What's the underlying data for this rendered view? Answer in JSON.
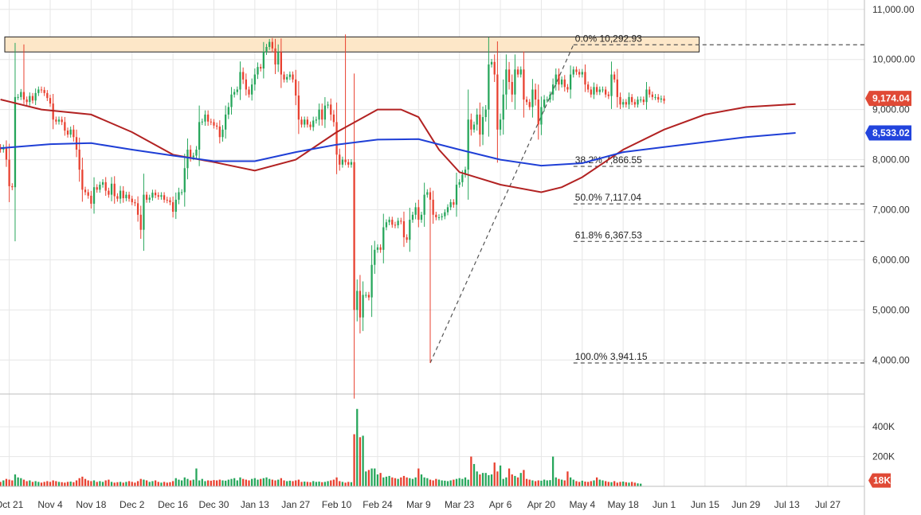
{
  "chart_data": {
    "type": "candlestick",
    "y_axis": {
      "min": 3500,
      "max": 11000,
      "ticks": [
        "11,000.00",
        "10,000.00",
        "9,000.00",
        "8,000.00",
        "7,000.00",
        "6,000.00",
        "5,000.00",
        "4,000.00"
      ],
      "tick_values": [
        11000,
        10000,
        9000,
        8000,
        7000,
        6000,
        5000,
        4000
      ],
      "side": "right"
    },
    "volume_axis": {
      "min": 0,
      "max": 540000,
      "ticks": [
        "400K",
        "200K"
      ],
      "tick_values": [
        400000,
        200000
      ]
    },
    "x_axis": {
      "start": "2019-10-21",
      "end": "2020-08-03",
      "labels": [
        "Oct 21",
        "Nov 4",
        "Nov 18",
        "Dec 2",
        "Dec 16",
        "Dec 30",
        "Jan 13",
        "Jan 27",
        "Feb 10",
        "Feb 24",
        "Mar 9",
        "Mar 23",
        "Apr 6",
        "Apr 20",
        "May 4",
        "May 18",
        "Jun 1",
        "Jun 15",
        "Jun 29",
        "Jul 13",
        "Jul 27"
      ],
      "label_dates": [
        "2019-10-21",
        "2019-11-04",
        "2019-11-18",
        "2019-12-02",
        "2019-12-16",
        "2019-12-30",
        "2020-01-13",
        "2020-01-27",
        "2020-02-10",
        "2020-02-24",
        "2020-03-09",
        "2020-03-23",
        "2020-04-06",
        "2020-04-20",
        "2020-05-04",
        "2020-05-18",
        "2020-06-01",
        "2020-06-15",
        "2020-06-29",
        "2020-07-13",
        "2020-07-27"
      ]
    },
    "grid": true,
    "colors": {
      "up": "#26a65b",
      "down": "#e8402f",
      "ma_short": "#b22222",
      "ma_long": "#1f3fd6",
      "zone_fill": "#fde7c8",
      "zone_border": "#222222"
    },
    "candles": {
      "first_date": "2019-10-18",
      "close": [
        8200,
        8240,
        8000,
        7470,
        7450,
        9250,
        9250,
        9350,
        9200,
        9150,
        9270,
        9180,
        9330,
        9400,
        9390,
        9330,
        9230,
        9120,
        8800,
        8760,
        8800,
        8750,
        8580,
        8500,
        8600,
        8450,
        8200,
        7800,
        7400,
        7350,
        7280,
        7120,
        7450,
        7400,
        7500,
        7550,
        7380,
        7300,
        7520,
        7270,
        7220,
        7380,
        7230,
        7300,
        7220,
        7150,
        7130,
        6900,
        6600,
        7300,
        7200,
        7240,
        7340,
        7290,
        7260,
        7290,
        7200,
        7190,
        7150,
        6960,
        7200,
        7350,
        7350,
        7830,
        8200,
        8050,
        8080,
        8200,
        8750,
        8760,
        8900,
        8760,
        8750,
        8680,
        8660,
        8450,
        8600,
        8900,
        9050,
        9300,
        9350,
        9400,
        9750,
        9600,
        9400,
        9300,
        9500,
        9700,
        9850,
        9820,
        10150,
        10250,
        10350,
        10220,
        9900,
        10150,
        9700,
        9600,
        9650,
        9700,
        9600,
        9280,
        8800,
        8700,
        8800,
        8700,
        8650,
        8780,
        8800,
        9000,
        8800,
        9080,
        9100,
        8900,
        8750,
        8100,
        7900,
        8000,
        7950,
        7900,
        7950,
        5000,
        5380,
        4850,
        5300,
        5300,
        5250,
        5900,
        6200,
        6250,
        6200,
        6650,
        6750,
        6800,
        6700,
        6690,
        6780,
        6770,
        6450,
        6400,
        6800,
        6900,
        7050,
        6800,
        6900,
        7300,
        7350,
        7200,
        6900,
        6850,
        6850,
        6870,
        6950,
        7050,
        7150,
        7100,
        7500,
        7550,
        7700,
        7800,
        8800,
        8600,
        8700,
        8900,
        8500,
        8850,
        9000,
        9900,
        9950,
        9700,
        8600,
        8800,
        9300,
        9800,
        9550,
        9300,
        9800,
        9700,
        9800,
        9200,
        9150,
        9050,
        9400,
        9200,
        8700,
        9050,
        9200,
        9200,
        9300,
        9500,
        9700,
        9500,
        9600,
        9450,
        9400,
        9700,
        9800,
        9750,
        9700,
        9750,
        9500,
        9400,
        9300,
        9450,
        9350,
        9400,
        9400,
        9300,
        9270,
        9700,
        9600,
        9250,
        9100,
        9150,
        9100,
        9250,
        9150,
        9100,
        9200,
        9200,
        9150,
        9400,
        9300,
        9250,
        9250,
        9200,
        9220,
        9174
      ],
      "open": [
        8250,
        8200,
        8240,
        8000,
        7470,
        7450,
        9250,
        9250,
        9350,
        9200,
        9150,
        9270,
        9180,
        9330,
        9400,
        9390,
        9330,
        9230,
        9120,
        8800,
        8760,
        8800,
        8750,
        8580,
        8500,
        8600,
        8450,
        8200,
        7800,
        7400,
        7350,
        7280,
        7120,
        7450,
        7400,
        7500,
        7550,
        7380,
        7300,
        7520,
        7270,
        7220,
        7380,
        7230,
        7300,
        7220,
        7150,
        7130,
        6900,
        6600,
        7300,
        7200,
        7240,
        7340,
        7290,
        7260,
        7290,
        7200,
        7190,
        7150,
        6960,
        7200,
        7350,
        7350,
        7830,
        8200,
        8050,
        8080,
        8200,
        8750,
        8760,
        8900,
        8760,
        8750,
        8680,
        8660,
        8450,
        8600,
        8900,
        9050,
        9300,
        9350,
        9400,
        9750,
        9600,
        9400,
        9300,
        9500,
        9700,
        9850,
        9820,
        10150,
        10250,
        10350,
        10220,
        9900,
        10150,
        9700,
        9600,
        9650,
        9700,
        9600,
        9280,
        8800,
        8700,
        8800,
        8700,
        8650,
        8780,
        8800,
        9000,
        8800,
        9080,
        9100,
        8900,
        8750,
        8100,
        7900,
        8000,
        7950,
        7900,
        7950,
        5000,
        5380,
        4850,
        5300,
        5300,
        5250,
        5900,
        6200,
        6250,
        6200,
        6650,
        6750,
        6800,
        6700,
        6690,
        6780,
        6770,
        6450,
        6400,
        6800,
        6900,
        7050,
        6800,
        6900,
        7300,
        7350,
        7200,
        6900,
        6850,
        6850,
        6870,
        6950,
        7050,
        7150,
        7100,
        7500,
        7550,
        7700,
        7800,
        8800,
        8600,
        8700,
        8900,
        8500,
        8850,
        9000,
        9900,
        9950,
        9700,
        8600,
        8800,
        9300,
        9800,
        9550,
        9300,
        9800,
        9700,
        9800,
        9200,
        9150,
        9050,
        9400,
        9200,
        8700,
        9050,
        9200,
        9200,
        9300,
        9500,
        9700,
        9500,
        9600,
        9450,
        9400,
        9700,
        9800,
        9750,
        9700,
        9750,
        9500,
        9400,
        9300,
        9450,
        9350,
        9400,
        9400,
        9300,
        9270,
        9700,
        9600,
        9250,
        9100,
        9150,
        9100,
        9250,
        9150,
        9100,
        9200,
        9200,
        9150,
        9400,
        9300,
        9250,
        9250,
        9200,
        9220
      ],
      "note": "daily OHLC estimated from the chart"
    },
    "high_low": [
      {
        "date": "2019-10-26",
        "high": 10300
      },
      {
        "date": "2020-02-13",
        "high": 10500
      },
      {
        "date": "2020-03-13",
        "low": 3941
      },
      {
        "date": "2020-06-02",
        "high": 10300
      }
    ],
    "moving_averages": {
      "short": {
        "color": "#b22222",
        "last_value": 9174.04,
        "points": [
          [
            "2019-10-18",
            9200
          ],
          [
            "2019-11-01",
            9000
          ],
          [
            "2019-11-18",
            8900
          ],
          [
            "2019-12-02",
            8550
          ],
          [
            "2019-12-16",
            8100
          ],
          [
            "2019-12-30",
            7950
          ],
          [
            "2020-01-13",
            7780
          ],
          [
            "2020-01-27",
            8000
          ],
          [
            "2020-02-10",
            8550
          ],
          [
            "2020-02-24",
            9000
          ],
          [
            "2020-03-03",
            9000
          ],
          [
            "2020-03-09",
            8850
          ],
          [
            "2020-03-16",
            8200
          ],
          [
            "2020-03-23",
            7750
          ],
          [
            "2020-04-06",
            7500
          ],
          [
            "2020-04-20",
            7350
          ],
          [
            "2020-04-27",
            7450
          ],
          [
            "2020-05-04",
            7650
          ],
          [
            "2020-05-18",
            8200
          ],
          [
            "2020-06-01",
            8600
          ],
          [
            "2020-06-15",
            8900
          ],
          [
            "2020-06-29",
            9050
          ],
          [
            "2020-07-16",
            9110
          ]
        ]
      },
      "long": {
        "color": "#1f3fd6",
        "last_value": 8533.02,
        "points": [
          [
            "2019-10-18",
            8230
          ],
          [
            "2019-11-04",
            8310
          ],
          [
            "2019-11-18",
            8330
          ],
          [
            "2019-12-02",
            8200
          ],
          [
            "2019-12-16",
            8080
          ],
          [
            "2019-12-30",
            7970
          ],
          [
            "2020-01-13",
            7970
          ],
          [
            "2020-01-27",
            8150
          ],
          [
            "2020-02-10",
            8300
          ],
          [
            "2020-02-24",
            8400
          ],
          [
            "2020-03-09",
            8410
          ],
          [
            "2020-03-23",
            8200
          ],
          [
            "2020-04-06",
            8000
          ],
          [
            "2020-04-20",
            7880
          ],
          [
            "2020-05-04",
            7930
          ],
          [
            "2020-05-18",
            8150
          ],
          [
            "2020-06-01",
            8250
          ],
          [
            "2020-06-15",
            8350
          ],
          [
            "2020-06-29",
            8450
          ],
          [
            "2020-07-16",
            8533
          ]
        ]
      }
    },
    "fibonacci": {
      "levels": [
        {
          "label": "0.0% 10,292.93",
          "value": 10292.93
        },
        {
          "label": "38.2% 7,866.55",
          "value": 7866.55
        },
        {
          "label": "50.0% 7,117.04",
          "value": 7117.04
        },
        {
          "label": "61.8% 6,367.53",
          "value": 6367.53
        },
        {
          "label": "100.0% 3,941.15",
          "value": 3941.15
        }
      ],
      "anchor_start": {
        "date": "2020-03-13",
        "value": 3941.15
      },
      "anchor_end": {
        "date": "2020-05-01",
        "value": 10292.93
      },
      "levels_start_date": "2020-05-01"
    },
    "resistance_zone": {
      "from_date": "2019-10-18",
      "to_date": "2020-06-13",
      "low": 10150,
      "high": 10450
    },
    "volume": {
      "first_date": "2019-10-18",
      "values": [
        30000,
        40000,
        50000,
        45000,
        40000,
        80000,
        60000,
        55000,
        45000,
        35000,
        40000,
        30000,
        35000,
        30000,
        25000,
        30000,
        35000,
        30000,
        40000,
        35000,
        30000,
        28000,
        25000,
        30000,
        32000,
        28000,
        40000,
        55000,
        65000,
        50000,
        40000,
        35000,
        40000,
        30000,
        35000,
        30000,
        40000,
        45000,
        30000,
        25000,
        28000,
        30000,
        25000,
        30000,
        35000,
        30000,
        25000,
        35000,
        50000,
        45000,
        40000,
        30000,
        35000,
        40000,
        30000,
        25000,
        30000,
        25000,
        28000,
        35000,
        55000,
        45000,
        40000,
        60000,
        50000,
        40000,
        45000,
        120000,
        40000,
        50000,
        35000,
        40000,
        38000,
        42000,
        40000,
        45000,
        40000,
        38000,
        45000,
        50000,
        55000,
        40000,
        60000,
        50000,
        45000,
        40000,
        50000,
        55000,
        45000,
        50000,
        55000,
        60000,
        50000,
        45000,
        40000,
        45000,
        55000,
        40000,
        35000,
        38000,
        35000,
        40000,
        45000,
        30000,
        32000,
        30000,
        28000,
        35000,
        30000,
        32000,
        28000,
        30000,
        35000,
        40000,
        45000,
        60000,
        35000,
        30000,
        25000,
        30000,
        28000,
        350000,
        520000,
        330000,
        340000,
        100000,
        110000,
        120000,
        120000,
        80000,
        90000,
        60000,
        65000,
        70000,
        60000,
        55000,
        50000,
        60000,
        70000,
        60000,
        55000,
        50000,
        60000,
        120000,
        80000,
        60000,
        55000,
        45000,
        40000,
        50000,
        45000,
        40000,
        38000,
        35000,
        40000,
        45000,
        50000,
        55000,
        50000,
        60000,
        45000,
        200000,
        150000,
        100000,
        80000,
        90000,
        90000,
        75000,
        80000,
        160000,
        100000,
        140000,
        50000,
        60000,
        120000,
        80000,
        70000,
        60000,
        90000,
        110000,
        50000,
        45000,
        40000,
        35000,
        40000,
        38000,
        45000,
        40000,
        42000,
        200000,
        60000,
        50000,
        45000,
        40000,
        100000,
        60000,
        45000,
        35000,
        30000,
        38000,
        32000,
        30000,
        35000,
        40000,
        60000,
        45000,
        40000,
        35000,
        30000,
        28000,
        35000,
        25000,
        30000,
        32000,
        28000,
        25000,
        30000,
        25000,
        20000,
        18000
      ]
    },
    "last_price_label": "9,174.04",
    "long_ma_label": "8,533.02",
    "last_volume_label": "18K"
  }
}
